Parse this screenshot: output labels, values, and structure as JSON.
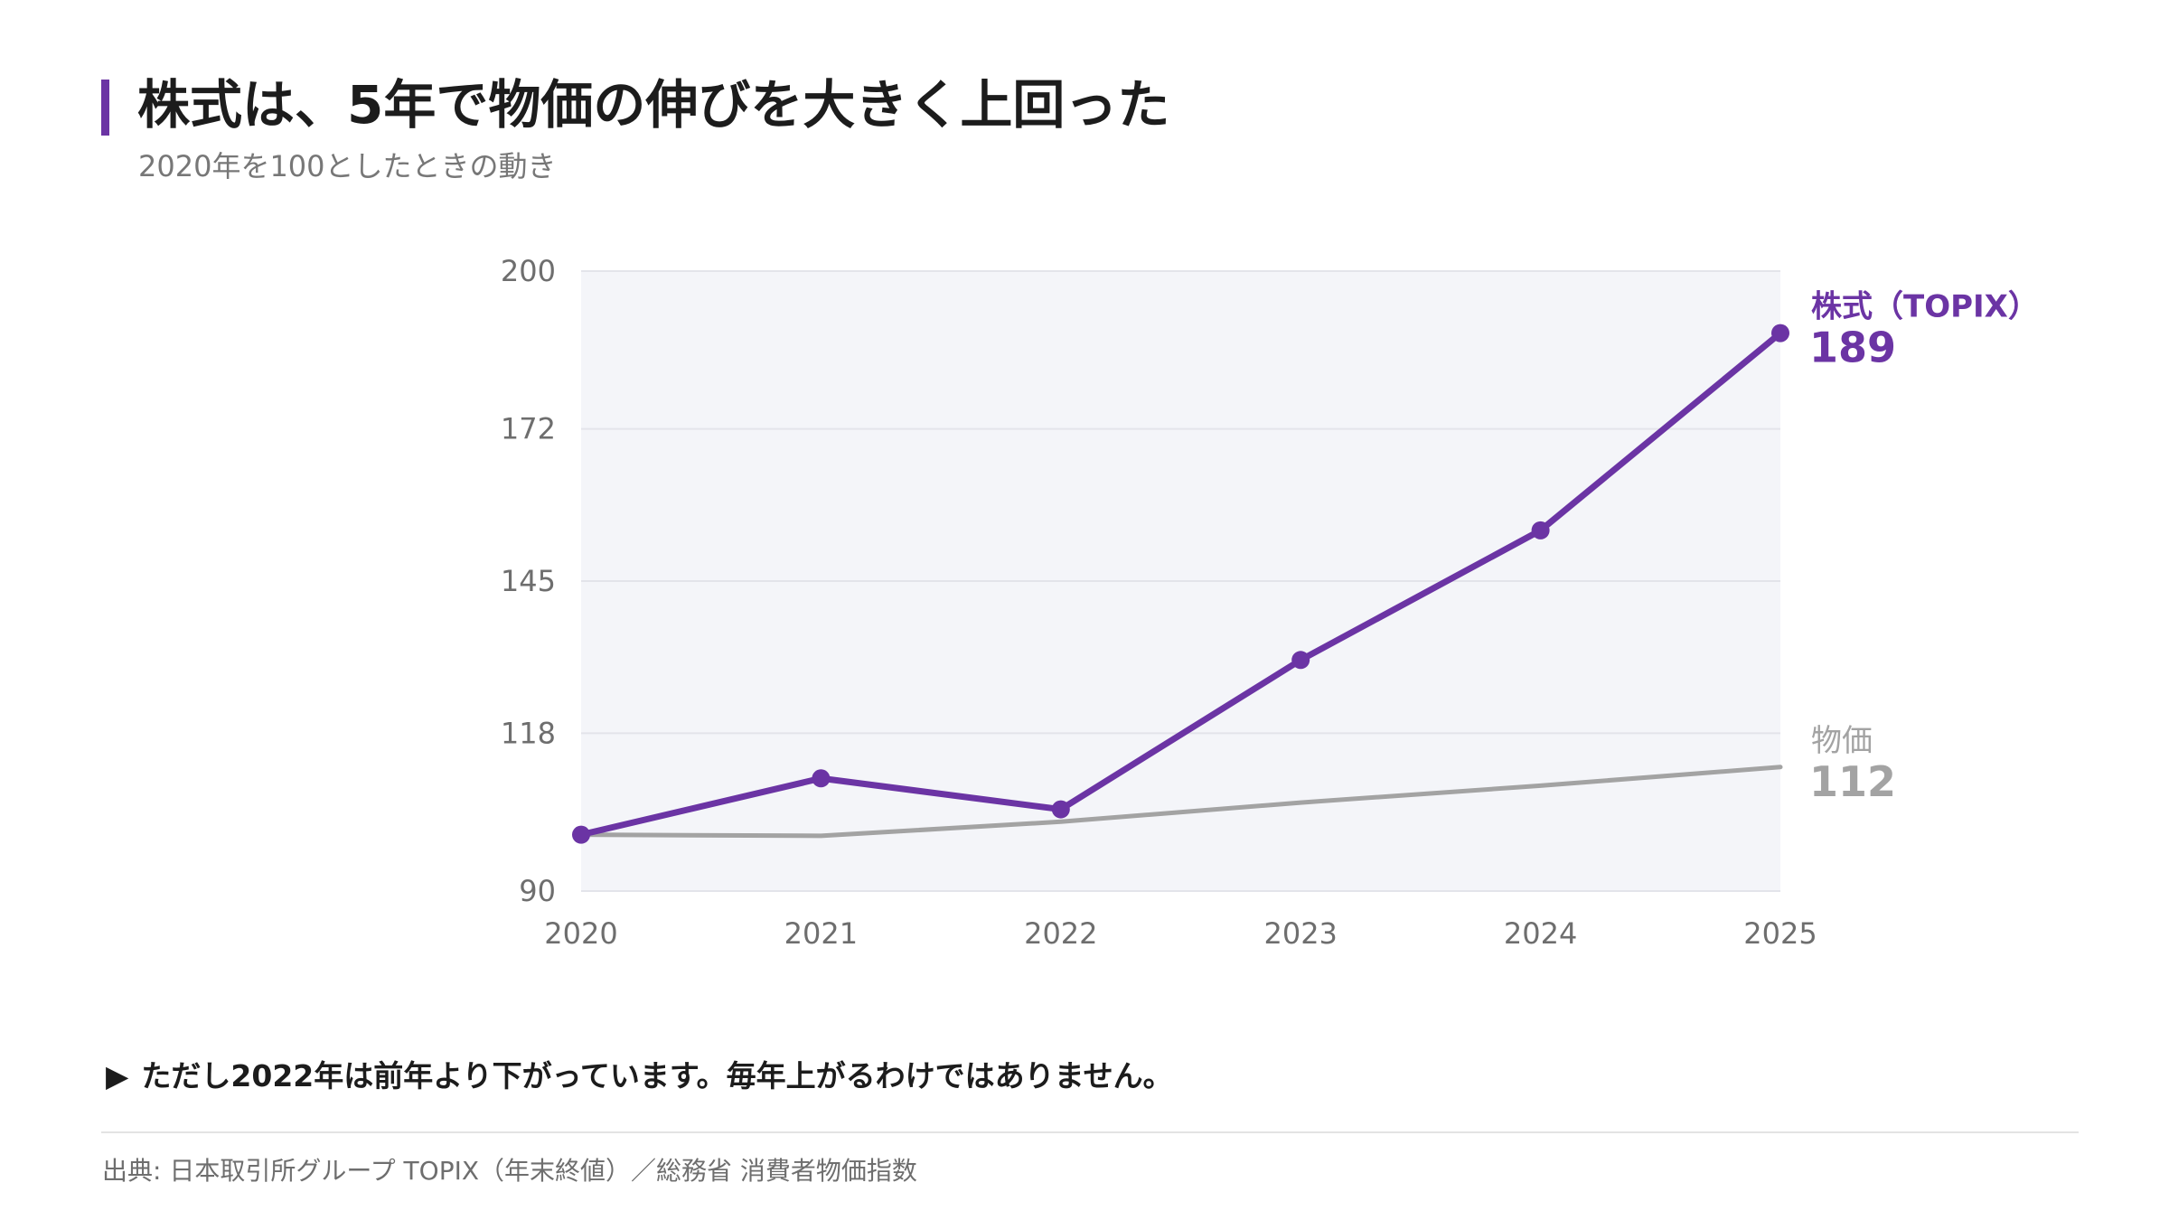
{
  "title": "株式は、5年で物価の伸びを大きく上回った",
  "subtitle": "2020年を100としたときの動き",
  "note": {
    "icon": "play-triangle-icon",
    "marker": "▶",
    "text": "ただし2022年は前年より下がっています。毎年上がるわけではありません。"
  },
  "source": "出典: 日本取引所グループ TOPIX（年末終値）／総務省 消費者物価指数",
  "colors": {
    "stock": "#6b34a4",
    "prices": "#a3a3a3",
    "plot_bg": "#f4f5f9",
    "grid": "#e3e4ea",
    "tick": "#6e6e6e"
  },
  "chart_data": {
    "type": "line",
    "x": [
      "2020",
      "2021",
      "2022",
      "2023",
      "2024",
      "2025"
    ],
    "ylim": [
      90,
      200
    ],
    "yticks": [
      "90",
      "118",
      "145",
      "172",
      "200"
    ],
    "grid": true,
    "legend": "end-of-line labels, right",
    "series": [
      {
        "name": "株式（TOPIX）",
        "end_label": "189",
        "values": [
          100,
          110,
          104.5,
          131,
          154,
          189
        ],
        "markers": true
      },
      {
        "name": "物価",
        "end_label": "112",
        "values": [
          100,
          99.8,
          102.3,
          105.7,
          108.7,
          112
        ],
        "markers": false
      }
    ]
  }
}
